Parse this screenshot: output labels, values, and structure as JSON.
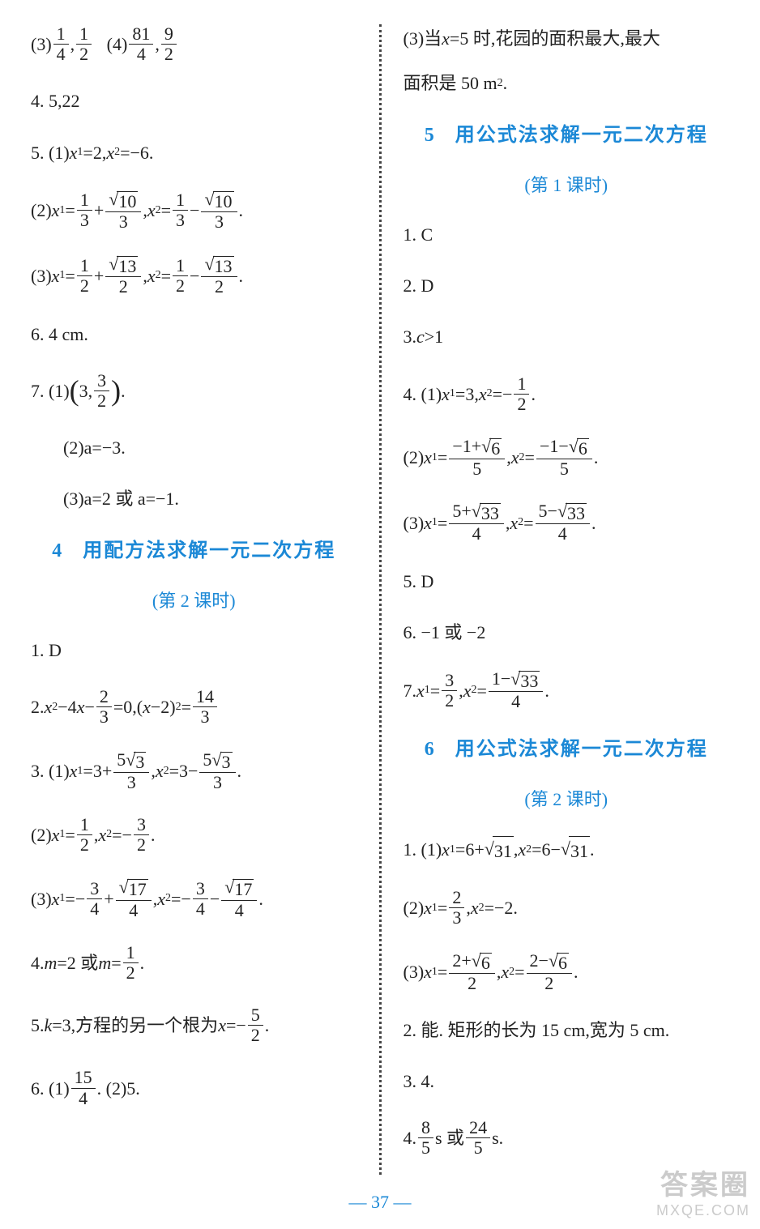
{
  "page_number": "37",
  "watermark": {
    "line1": "答案圈",
    "line2": "MXQE.COM"
  },
  "colors": {
    "heading": "#1b88d6",
    "text": "#222222",
    "background": "#ffffff",
    "divider": "#444444"
  },
  "left": {
    "i1a": "(3)",
    "i1b": "(4)",
    "frac_1_4_n": "1",
    "frac_1_4_d": "4",
    "frac_1_2_n": "1",
    "frac_1_2_d": "2",
    "frac_81_4_n": "81",
    "frac_81_4_d": "4",
    "frac_9_2_n": "9",
    "frac_9_2_d": "2",
    "i2": "4. 5,22",
    "i3": "5. (1) ",
    "i3b": "=2,",
    "i3c": "=−6.",
    "i4": "(2) ",
    "i5": "(3) ",
    "frac_1_3_n": "1",
    "frac_1_3_d": "3",
    "sqrt10": "10",
    "frac_1_2b_n": "1",
    "frac_1_2b_d": "2",
    "sqrt13": "13",
    "i6": "6. 4 cm.",
    "i7": "7. (1)",
    "frac_3_2_n": "3",
    "frac_3_2_d": "2",
    "i7b": "(2)a=−3.",
    "i7c": "(3)a=2 或 a=−1.",
    "sec4_num": "4",
    "sec4_title": "用配方法求解一元二次方程",
    "sec4_sub": "(第 2 课时)",
    "s4_1": "1. D",
    "s4_2a": "2. ",
    "s4_2b": "−4",
    "s4_2c": "−",
    "s4_2d": "=0,(",
    "s4_2e": "−2)",
    "s4_2f": "=",
    "frac_2_3_n": "2",
    "frac_2_3_d": "3",
    "frac_14_3_n": "14",
    "frac_14_3_d": "3",
    "s4_3": "3. (1) ",
    "s4_3_a": "=3+",
    "s4_3_b": "=3−",
    "five": "5",
    "sqrt3": "3",
    "s4_3_2": "(2) ",
    "s4_3_3": "(3) ",
    "frac_3_4_n": "3",
    "frac_3_4_d": "4",
    "sqrt17": "17",
    "s4_4": "4. ",
    "s4_4b": "=2 或 ",
    "s4_4c": "=",
    "s4_5a": "5. ",
    "s4_5b": "=3,方程的另一个根为 ",
    "s4_5c": "=−",
    "frac_5_2_n": "5",
    "frac_5_2_d": "2",
    "s4_6": "6. (1)",
    "s4_6b": ". (2)5.",
    "frac_15_4_n": "15",
    "frac_15_4_d": "4"
  },
  "right": {
    "r1a": "(3)当 ",
    "r1b": "=5 时,花园的面积最大,最大",
    "r1c": "面积是 50 m",
    "r1d": ".",
    "sec5_num": "5",
    "sec5_title": "用公式法求解一元二次方程",
    "sec5_sub": "(第 1 课时)",
    "s5_1": "1. C",
    "s5_2": "2. D",
    "s5_3": "3. ",
    "s5_3b": ">1",
    "s5_4": "4. (1) ",
    "s5_4b": "=3,",
    "s5_4c": "=−",
    "s5_4_2": "(2) ",
    "sqrt6": "6",
    "num_m1p": "−1+",
    "num_m1m": "−1−",
    "den5": "5",
    "s5_4_3": "(3) ",
    "num_5p": "5+",
    "num_5m": "5−",
    "sqrt33": "33",
    "den4": "4",
    "s5_5": "5. D",
    "s5_6": "6. −1 或 −2",
    "s5_7": "7. ",
    "num_1m": "1−",
    "sec6_num": "6",
    "sec6_title": "用公式法求解一元二次方程",
    "sec6_sub": "(第 2 课时)",
    "s6_1": "1. (1)",
    "s6_1b": "=6+",
    "s6_1c": "=6−",
    "sqrt31": "31",
    "s6_1_2": "(2) ",
    "s6_1_2b": "=−2.",
    "frac_2_3b_n": "2",
    "frac_2_3b_d": "3",
    "s6_1_3": "(3) ",
    "num_2p": "2+",
    "num_2m": "2−",
    "den2": "2",
    "s6_2": "2. 能. 矩形的长为 15 cm,宽为 5 cm.",
    "s6_3": "3. 4.",
    "s6_4": "4. ",
    "s6_4b": "s 或 ",
    "s6_4c": "s.",
    "frac_8_5_n": "8",
    "frac_8_5_d": "5",
    "frac_24_5_n": "24",
    "frac_24_5_d": "5"
  }
}
